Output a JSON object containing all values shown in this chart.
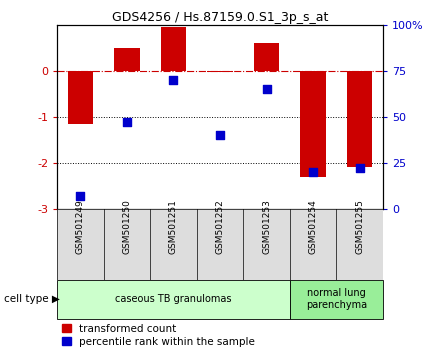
{
  "title": "GDS4256 / Hs.87159.0.S1_3p_s_at",
  "samples": [
    "GSM501249",
    "GSM501250",
    "GSM501251",
    "GSM501252",
    "GSM501253",
    "GSM501254",
    "GSM501255"
  ],
  "transformed_counts": [
    -1.15,
    0.5,
    0.95,
    -0.02,
    0.6,
    -2.3,
    -2.1
  ],
  "percentile_ranks": [
    7,
    47,
    70,
    40,
    65,
    20,
    22
  ],
  "ylim_left": [
    -3,
    1
  ],
  "ylim_right": [
    0,
    100
  ],
  "yticks_left": [
    0,
    -1,
    -2,
    -3
  ],
  "ytick_labels_left": [
    "0",
    "-1",
    "-2",
    "-3"
  ],
  "yticks_right": [
    100,
    75,
    50,
    25,
    0
  ],
  "ytick_labels_right": [
    "100%",
    "75",
    "50",
    "25",
    "0"
  ],
  "hline_y": 0,
  "dotted_lines": [
    -1,
    -2
  ],
  "bar_color": "#cc0000",
  "dot_color": "#0000cc",
  "bg_color": "#ffffff",
  "plot_bg": "#ffffff",
  "cell_types": [
    {
      "label": "caseous TB granulomas",
      "start": 0,
      "end": 4,
      "color": "#ccffcc"
    },
    {
      "label": "normal lung\nparenchyma",
      "start": 5,
      "end": 6,
      "color": "#99ee99"
    }
  ],
  "cell_type_label": "cell type",
  "legend_red": "transformed count",
  "legend_blue": "percentile rank within the sample",
  "bar_width": 0.55,
  "dot_size": 30,
  "fig_width": 4.4,
  "fig_height": 3.54,
  "dpi": 100
}
